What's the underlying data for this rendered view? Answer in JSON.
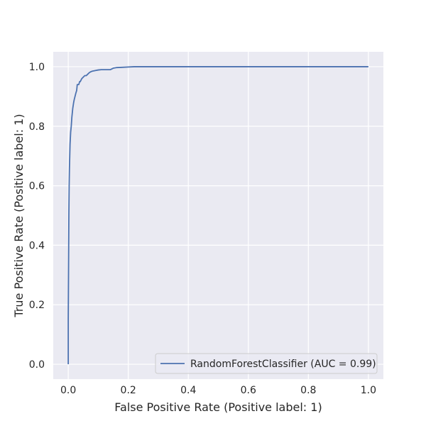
{
  "chart_data": {
    "type": "line",
    "xlabel": "False Positive Rate (Positive label: 1)",
    "ylabel": "True Positive Rate (Positive label: 1)",
    "xlim": [
      -0.05,
      1.05
    ],
    "ylim": [
      -0.05,
      1.05
    ],
    "x_ticks": [
      "0.0",
      "0.2",
      "0.4",
      "0.6",
      "0.8",
      "1.0"
    ],
    "y_ticks": [
      "0.0",
      "0.2",
      "0.4",
      "0.6",
      "0.8",
      "1.0"
    ],
    "grid": true,
    "legend_position": "lower-right",
    "background_color": "#eaeaf2",
    "grid_color": "#ffffff",
    "series": [
      {
        "name": "RandomForestClassifier (AUC = 0.99)",
        "color": "#4c72b0",
        "x": [
          0.0,
          0.0,
          0.001,
          0.002,
          0.003,
          0.004,
          0.005,
          0.006,
          0.008,
          0.01,
          0.012,
          0.015,
          0.018,
          0.02,
          0.025,
          0.028,
          0.03,
          0.035,
          0.038,
          0.04,
          0.045,
          0.05,
          0.055,
          0.06,
          0.065,
          0.07,
          0.075,
          0.08,
          0.09,
          0.1,
          0.11,
          0.12,
          0.14,
          0.15,
          0.16,
          0.18,
          0.2,
          0.22,
          0.3,
          0.5,
          0.7,
          1.0
        ],
        "y": [
          0.0,
          0.15,
          0.32,
          0.5,
          0.6,
          0.66,
          0.7,
          0.74,
          0.78,
          0.8,
          0.83,
          0.86,
          0.88,
          0.89,
          0.91,
          0.92,
          0.94,
          0.94,
          0.95,
          0.95,
          0.96,
          0.965,
          0.97,
          0.97,
          0.975,
          0.98,
          0.983,
          0.985,
          0.987,
          0.989,
          0.99,
          0.99,
          0.99,
          0.995,
          0.997,
          0.998,
          0.999,
          1.0,
          1.0,
          1.0,
          1.0,
          1.0
        ]
      }
    ]
  }
}
